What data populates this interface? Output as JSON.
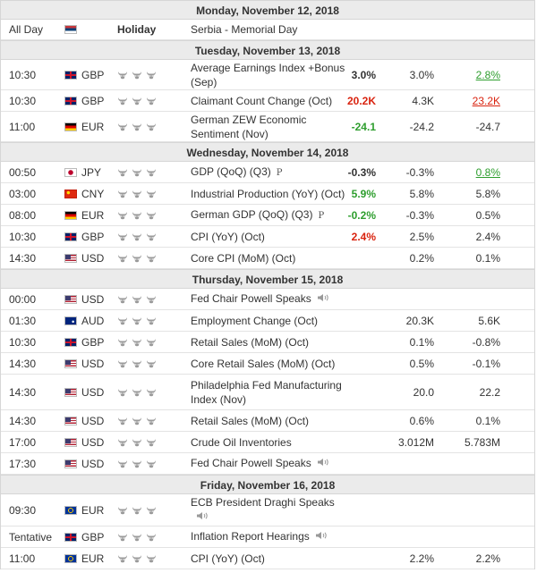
{
  "days": [
    {
      "label": "Monday, November 12, 2018",
      "events": [
        {
          "type": "holiday",
          "time": "All Day",
          "flag": "rs",
          "currency": "",
          "holiday_label": "Holiday",
          "event": "Serbia - Memorial Day",
          "h": 23
        }
      ]
    },
    {
      "label": "Tuesday, November 13, 2018",
      "events": [
        {
          "time": "10:30",
          "flag": "gb",
          "currency": "GBP",
          "event": "Average Earnings Index +Bonus (Sep)",
          "actual": "3.0%",
          "actual_color": "",
          "forecast": "3.0%",
          "previous": "2.8%",
          "previous_color": "ul-green",
          "h": 34
        },
        {
          "time": "10:30",
          "flag": "gb",
          "currency": "GBP",
          "event": "Claimant Count Change (Oct)",
          "actual": "20.2K",
          "actual_color": "red",
          "forecast": "4.3K",
          "previous": "23.2K",
          "previous_color": "ul-red",
          "h": 24
        },
        {
          "time": "11:00",
          "flag": "de",
          "currency": "EUR",
          "event": "German ZEW Economic Sentiment (Nov)",
          "actual": "-24.1",
          "actual_color": "green",
          "forecast": "-24.2",
          "previous": "-24.7",
          "previous_color": "",
          "h": 34
        }
      ]
    },
    {
      "label": "Wednesday, November 14, 2018",
      "events": [
        {
          "time": "00:50",
          "flag": "jp",
          "currency": "JPY",
          "event": "GDP (QoQ) (Q3)",
          "mark": "P",
          "actual": "-0.3%",
          "actual_color": "",
          "forecast": "-0.3%",
          "previous": "0.8%",
          "previous_color": "ul-green",
          "h": 24
        },
        {
          "time": "03:00",
          "flag": "cn",
          "currency": "CNY",
          "event": "Industrial Production (YoY) (Oct)",
          "actual": "5.9%",
          "actual_color": "green",
          "forecast": "5.8%",
          "previous": "5.8%",
          "previous_color": "",
          "h": 24
        },
        {
          "time": "08:00",
          "flag": "de",
          "currency": "EUR",
          "event": "German GDP (QoQ) (Q3)",
          "mark": "P",
          "actual": "-0.2%",
          "actual_color": "green",
          "forecast": "-0.3%",
          "previous": "0.5%",
          "previous_color": "",
          "h": 24
        },
        {
          "time": "10:30",
          "flag": "gb",
          "currency": "GBP",
          "event": "CPI (YoY) (Oct)",
          "actual": "2.4%",
          "actual_color": "red",
          "forecast": "2.5%",
          "previous": "2.4%",
          "previous_color": "",
          "h": 24
        },
        {
          "time": "14:30",
          "flag": "us",
          "currency": "USD",
          "event": "Core CPI (MoM) (Oct)",
          "actual": "",
          "actual_color": "",
          "forecast": "0.2%",
          "previous": "0.1%",
          "previous_color": "",
          "h": 24
        }
      ]
    },
    {
      "label": "Thursday, November 15, 2018",
      "events": [
        {
          "time": "00:00",
          "flag": "us",
          "currency": "USD",
          "event": "Fed Chair Powell Speaks",
          "speech": true,
          "actual": "",
          "forecast": "",
          "previous": "",
          "h": 24
        },
        {
          "time": "01:30",
          "flag": "au",
          "currency": "AUD",
          "event": "Employment Change (Oct)",
          "actual": "",
          "forecast": "20.3K",
          "previous": "5.6K",
          "previous_color": "",
          "h": 24
        },
        {
          "time": "10:30",
          "flag": "gb",
          "currency": "GBP",
          "event": "Retail Sales (MoM) (Oct)",
          "actual": "",
          "forecast": "0.1%",
          "previous": "-0.8%",
          "previous_color": "",
          "h": 24
        },
        {
          "time": "14:30",
          "flag": "us",
          "currency": "USD",
          "event": "Core Retail Sales (MoM) (Oct)",
          "actual": "",
          "forecast": "0.5%",
          "previous": "-0.1%",
          "previous_color": "",
          "h": 24
        },
        {
          "time": "14:30",
          "flag": "us",
          "currency": "USD",
          "event": "Philadelphia Fed Manufacturing Index (Nov)",
          "actual": "",
          "forecast": "20.0",
          "previous": "22.2",
          "previous_color": "",
          "h": 40
        },
        {
          "time": "14:30",
          "flag": "us",
          "currency": "USD",
          "event": "Retail Sales (MoM) (Oct)",
          "actual": "",
          "forecast": "0.6%",
          "previous": "0.1%",
          "previous_color": "",
          "h": 24
        },
        {
          "time": "17:00",
          "flag": "us",
          "currency": "USD",
          "event": "Crude Oil Inventories",
          "actual": "",
          "forecast": "3.012M",
          "previous": "5.783M",
          "previous_color": "",
          "h": 24
        },
        {
          "time": "17:30",
          "flag": "us",
          "currency": "USD",
          "event": "Fed Chair Powell Speaks",
          "speech": true,
          "actual": "",
          "forecast": "",
          "previous": "",
          "h": 24
        }
      ]
    },
    {
      "label": "Friday, November 16, 2018",
      "events": [
        {
          "time": "09:30",
          "flag": "eu",
          "currency": "EUR",
          "event": "ECB President Draghi Speaks",
          "speech": true,
          "actual": "",
          "forecast": "",
          "previous": "",
          "h": 36
        },
        {
          "time": "Tentative",
          "flag": "gb",
          "currency": "GBP",
          "event": "Inflation Report Hearings",
          "speech": true,
          "actual": "",
          "forecast": "",
          "previous": "",
          "h": 24
        },
        {
          "time": "11:00",
          "flag": "eu",
          "currency": "EUR",
          "event": "CPI (YoY) (Oct)",
          "actual": "",
          "forecast": "2.2%",
          "previous": "2.2%",
          "previous_color": "",
          "h": 24
        }
      ]
    }
  ],
  "icons": {
    "importance": "bull-icon",
    "speech": "speaker-icon"
  }
}
